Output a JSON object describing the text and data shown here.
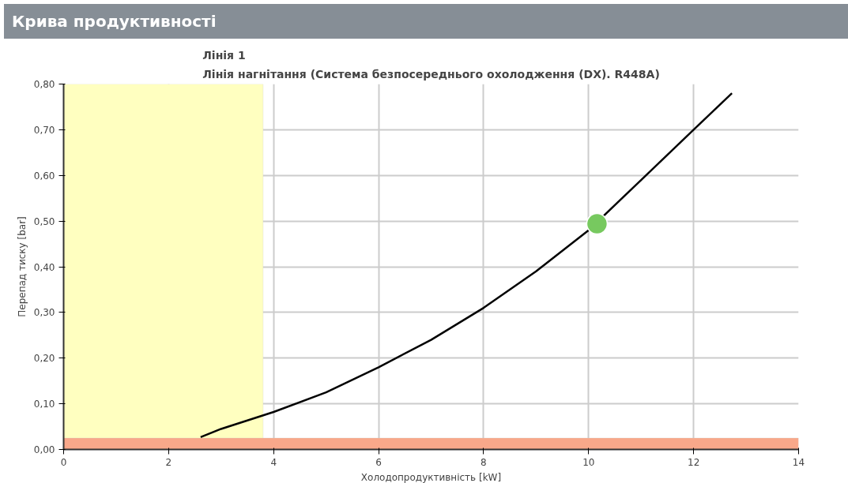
{
  "chart_data": {
    "type": "line",
    "title": "Крива продуктивності",
    "subtitle": "Лінія 1\nЛінія нагнітання (Система безпосереднього охолодження (DX). R448A)",
    "xlabel": "Холодопродуктивність [kW]",
    "ylabel": "Перепад тиску [bar]",
    "xlim": [
      0,
      14
    ],
    "ylim": [
      0,
      0.8
    ],
    "xticks": [
      0,
      2,
      4,
      6,
      8,
      10,
      12,
      14
    ],
    "yticks": [
      {
        "value": 0,
        "label": "0,00"
      },
      {
        "value": 0.1,
        "label": "0,10"
      },
      {
        "value": 0.2,
        "label": "0,20"
      },
      {
        "value": 0.3,
        "label": "0,30"
      },
      {
        "value": 0.4,
        "label": "0,40"
      },
      {
        "value": 0.5,
        "label": "0,50"
      },
      {
        "value": 0.6,
        "label": "0,60"
      },
      {
        "value": 0.7,
        "label": "0,70"
      },
      {
        "value": 0.8,
        "label": "0,80"
      }
    ],
    "grid": true,
    "marker": "none",
    "line_style": "solid",
    "bands": [
      {
        "axis": "x",
        "from": 0,
        "to": 3.8,
        "color": "#ffffc0"
      },
      {
        "axis": "y",
        "from": 0,
        "to": 0.025,
        "color": "#f9a88a"
      }
    ],
    "series": [
      {
        "color": "#000000",
        "x": [
          2.61,
          3,
          4,
          5,
          6,
          7,
          8,
          9,
          10,
          11,
          12,
          12.73
        ],
        "values": [
          0.027,
          0.045,
          0.082,
          0.125,
          0.18,
          0.24,
          0.31,
          0.39,
          0.48,
          0.59,
          0.7,
          0.78
        ]
      },
      {
        "type": "scatter",
        "marker": "circle",
        "color": "#77c95f",
        "x": [
          10.16
        ],
        "values": [
          0.494
        ]
      }
    ]
  }
}
